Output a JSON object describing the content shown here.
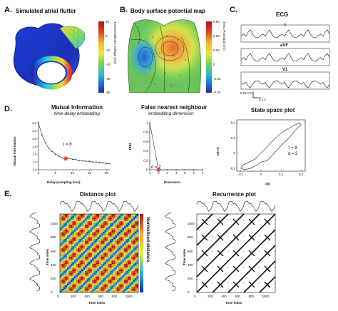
{
  "panels": {
    "a": {
      "letter": "A.",
      "title": "Simulated atrial flutter",
      "colorbar_label": "Transmembrane Voltage (mV)",
      "ticks": [
        "20",
        "0",
        "-20",
        "-40",
        "-60",
        "-80"
      ]
    },
    "b": {
      "letter": "B.",
      "title": "Body surface potential map",
      "colorbar_label": "Torso Potential (mV)",
      "ticks": [
        "0.06",
        "0.04",
        "0.02",
        "0",
        "-0.02",
        "-0.04"
      ]
    },
    "c": {
      "letter": "C.",
      "title": "ECG",
      "leads": [
        "I",
        "aVF",
        "V1"
      ],
      "scale_v": "0.02 mV",
      "scale_t": "0.1 s"
    },
    "d": {
      "letter": "D.",
      "mi": {
        "title": "Mutual Information",
        "subtitle": "time-delay embedding",
        "xlabel": "Delay (sampling time)",
        "ylabel": "Mutual Information",
        "annotation": "τ = 8",
        "xticks": [
          "0",
          "5",
          "10",
          "15",
          "20"
        ],
        "yticks": [
          "1.2",
          "1.4",
          "1.6",
          "1.8",
          "2.0",
          "2.2",
          "2.4"
        ]
      },
      "fnn": {
        "title": "False nearest neighbour",
        "subtitle": "embedding dimension",
        "xlabel": "Dimension",
        "ylabel": "FNN",
        "annotation": "d = 2",
        "xticks": [
          "1",
          "2",
          "3",
          "4",
          "5",
          "6",
          "7"
        ],
        "yticks": [
          "0",
          "0.2",
          "0.4",
          "0.6",
          "0.8",
          "1"
        ]
      },
      "ss": {
        "title": "State space plot",
        "xlabel": "x(t)",
        "ylabel": "x(t+τ)",
        "annotation_tau": "τ = 8",
        "annotation_d": "d = 2",
        "xticks": [
          "-0.1",
          "0",
          "0.1",
          "0.2"
        ],
        "yticks": [
          "-0.1",
          "0",
          "0.1",
          "0.2"
        ]
      }
    },
    "e": {
      "letter": "E.",
      "distance": {
        "title": "Distance plot",
        "xlabel": "Time index",
        "ylabel": "Time index",
        "colorbar_label": "Normalized distance",
        "xticks": [
          "0",
          "200",
          "400",
          "600",
          "800",
          "1000"
        ],
        "yticks": [
          "0",
          "200",
          "400",
          "600",
          "800",
          "1000"
        ]
      },
      "recurrence": {
        "title": "Recurrence plot",
        "xlabel": "Time index",
        "ylabel": "Time index",
        "xticks": [
          "0",
          "200",
          "400",
          "600",
          "800",
          "1000"
        ],
        "yticks": [
          "0",
          "200",
          "400",
          "600",
          "800",
          "1000"
        ]
      }
    }
  },
  "chart_data": [
    {
      "type": "line",
      "title": "Mutual Information",
      "xlabel": "Delay (sampling time)",
      "ylabel": "Mutual Information",
      "xlim": [
        0,
        21
      ],
      "ylim": [
        1.2,
        2.45
      ],
      "x": [
        0,
        1,
        2,
        3,
        4,
        5,
        6,
        7,
        8,
        9,
        10,
        11,
        12,
        13,
        14,
        15,
        16,
        17,
        18,
        19,
        20,
        21
      ],
      "y": [
        2.4,
        2.1,
        1.9,
        1.76,
        1.67,
        1.6,
        1.55,
        1.51,
        1.49,
        1.5,
        1.47,
        1.46,
        1.44,
        1.43,
        1.42,
        1.42,
        1.4,
        1.4,
        1.39,
        1.38,
        1.36,
        1.36
      ],
      "highlight": {
        "x": 8,
        "label": "τ = 8"
      }
    },
    {
      "type": "line",
      "title": "False nearest neighbour",
      "xlabel": "Dimension",
      "ylabel": "FNN",
      "xlim": [
        1,
        7
      ],
      "ylim": [
        0,
        1
      ],
      "x": [
        1,
        2,
        3,
        4,
        5,
        6,
        7
      ],
      "y": [
        1,
        0,
        0,
        0,
        0,
        0,
        0
      ],
      "highlight": {
        "x": 2,
        "label": "d = 2"
      }
    },
    {
      "type": "line",
      "title": "State space plot",
      "xlabel": "x(t)",
      "ylabel": "x(t+τ)",
      "xlim": [
        -0.12,
        0.22
      ],
      "ylim": [
        -0.12,
        0.22
      ],
      "x": [
        -0.1,
        -0.08,
        -0.05,
        -0.02,
        0.0,
        0.03,
        0.06,
        0.08,
        0.1,
        0.14,
        0.17,
        0.2,
        0.19,
        0.16,
        0.12,
        0.08,
        0.05,
        0.03,
        0.0,
        -0.03,
        -0.06,
        -0.09,
        -0.1
      ],
      "y": [
        -0.1,
        -0.11,
        -0.1,
        -0.08,
        -0.06,
        -0.05,
        -0.01,
        0.02,
        0.05,
        0.1,
        0.15,
        0.19,
        0.2,
        0.18,
        0.15,
        0.11,
        0.07,
        0.04,
        0.0,
        -0.04,
        -0.06,
        -0.08,
        -0.1
      ]
    }
  ]
}
